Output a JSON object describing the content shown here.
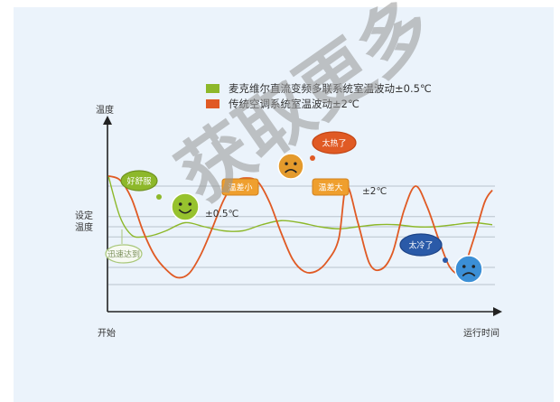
{
  "legend": {
    "items": [
      {
        "label": "麦克维尔直流变频多联系统室温波动±0.5℃",
        "color": "#8db82a"
      },
      {
        "label": "传统空调系统室温波动±2℃",
        "color": "#e05a24"
      }
    ]
  },
  "axes": {
    "y_label": "温度",
    "setpoint_label": "设定\n温度",
    "x_start_label": "开始",
    "x_end_label": "运行时间"
  },
  "annotations": {
    "green_band": "±0.5℃",
    "orange_band": "±2℃"
  },
  "bubbles": {
    "comfort": "好舒服",
    "quick": "迅速达到",
    "too_hot": "太热了",
    "small_gap": "温差小",
    "big_gap": "温差大",
    "too_cold": "太冷了"
  },
  "watermark": "获取更多",
  "chart_data": {
    "type": "line",
    "xlabel": "运行时间",
    "ylabel": "温度",
    "series": [
      {
        "name": "麦克维尔直流变频多联系统室温波动±0.5℃",
        "color": "#8db82a",
        "x": [
          0,
          3,
          6,
          9,
          12,
          15,
          20,
          25,
          30,
          35,
          40,
          45,
          50,
          55,
          60,
          65,
          70,
          75,
          80,
          85,
          90,
          95,
          100
        ],
        "values": [
          2.5,
          0.5,
          -0.4,
          -0.5,
          -0.4,
          -0.2,
          0.2,
          0.0,
          -0.2,
          -0.2,
          0.1,
          0.3,
          0.2,
          0.0,
          -0.1,
          0.0,
          0.1,
          0.1,
          0.0,
          0.0,
          0.1,
          0.2,
          0.1
        ]
      },
      {
        "name": "传统空调系统室温波动±2℃",
        "color": "#e05a24",
        "x": [
          0,
          3,
          6,
          9,
          12,
          15,
          18,
          21,
          24,
          27,
          30,
          33,
          36,
          39,
          42,
          45,
          48,
          51,
          54,
          57,
          60,
          62,
          65,
          68,
          71,
          74,
          77,
          80,
          83,
          86,
          89,
          92,
          95,
          98,
          100
        ],
        "values": [
          2.5,
          2.3,
          1.4,
          -0.2,
          -1.4,
          -2.1,
          -2.5,
          -2.3,
          -1.4,
          -0.1,
          1.3,
          2.2,
          2.4,
          2.2,
          1.2,
          -0.3,
          -1.6,
          -2.2,
          -2.2,
          -1.7,
          -0.6,
          2.0,
          0.2,
          -1.8,
          -2.1,
          -1.3,
          0.8,
          2.0,
          1.0,
          -0.6,
          -2.0,
          -2.2,
          -0.7,
          1.2,
          1.8
        ]
      }
    ],
    "reference_lines": [
      2.0,
      0.5,
      0.0,
      -0.5,
      -2.0
    ],
    "grid": true,
    "legend_position": "top"
  }
}
